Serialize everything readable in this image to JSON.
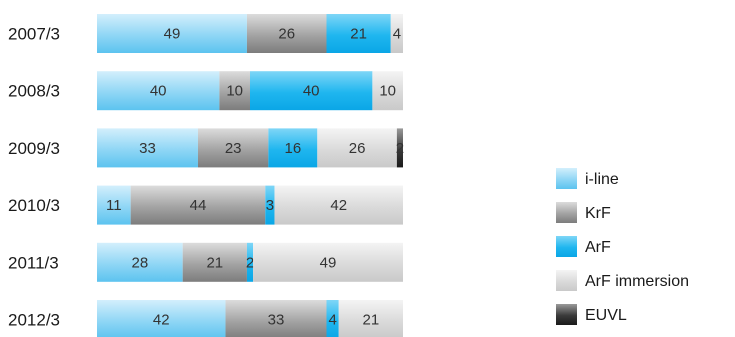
{
  "chart_data": {
    "type": "bar",
    "orientation": "horizontal",
    "stacked": true,
    "normalized_percent": true,
    "title": "",
    "xlabel": "",
    "ylabel": "",
    "categories": [
      "2007/3",
      "2008/3",
      "2009/3",
      "2010/3",
      "2011/3",
      "2012/3"
    ],
    "series": [
      {
        "name": "i-line",
        "values": [
          49,
          40,
          33,
          11,
          28,
          42
        ],
        "color": "#6cc8f0",
        "value_labels": [
          "49",
          "40",
          "33",
          "11",
          "28",
          "42"
        ]
      },
      {
        "name": "KrF",
        "values": [
          26,
          10,
          23,
          44,
          21,
          33
        ],
        "color": "#8c8c8c",
        "value_labels": [
          "26",
          "10",
          "23",
          "44",
          "21",
          "33"
        ]
      },
      {
        "name": "ArF",
        "values": [
          21,
          40,
          16,
          3,
          2,
          4
        ],
        "color": "#19b4ee",
        "value_labels": [
          "21",
          "40",
          "16",
          "3",
          "2",
          "4"
        ]
      },
      {
        "name": "ArF immersion",
        "values": [
          4,
          10,
          26,
          42,
          49,
          21
        ],
        "color": "#d6d6d6",
        "value_labels": [
          "4",
          "10",
          "26",
          "42",
          "49",
          "21"
        ]
      },
      {
        "name": "EUVL",
        "values": [
          0,
          0,
          2,
          0,
          0,
          0
        ],
        "color": "#3a3a3a",
        "value_labels": [
          "",
          "",
          "2",
          "",
          "",
          ""
        ]
      }
    ],
    "xlim": [
      0,
      100
    ],
    "grid": false,
    "legend_position": "right"
  }
}
